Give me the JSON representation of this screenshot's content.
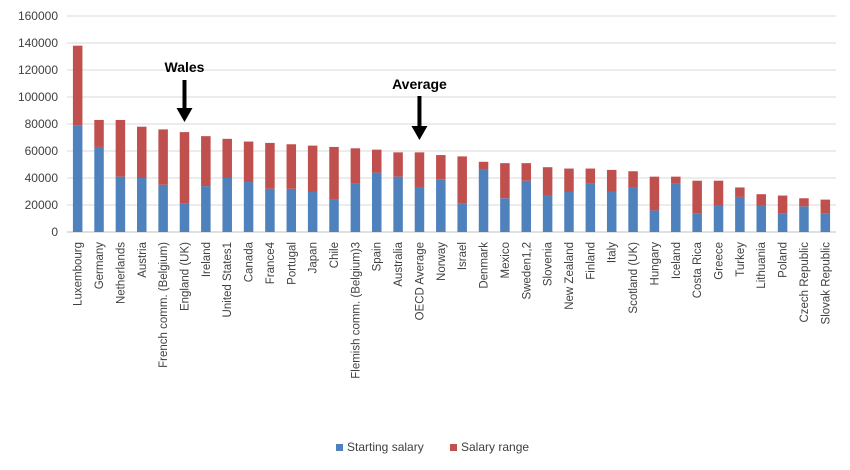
{
  "chart_data": {
    "type": "bar",
    "stacked": true,
    "categories": [
      "Luxembourg",
      "Germany",
      "Netherlands",
      "Austria",
      "French comm. (Belgium)",
      "England (UK)",
      "Ireland",
      "United States1",
      "Canada",
      "France4",
      "Portugal",
      "Japan",
      "Chile",
      "Flemish comm. (Belgium)3",
      "Spain",
      "Australia",
      "OECD Average",
      "Norway",
      "Israel",
      "Denmark",
      "Mexico",
      "Sweden1,2",
      "Slovenia",
      "New Zealand",
      "Finland",
      "Italy",
      "Scotland (UK)",
      "Hungary",
      "Iceland",
      "Costa Rica",
      "Greece",
      "Turkey",
      "Lithuania",
      "Poland",
      "Czech Republic",
      "Slovak Republic"
    ],
    "series": [
      {
        "name": "Starting salary",
        "color": "#4f81bd",
        "values": [
          79000,
          63000,
          41000,
          40000,
          35000,
          21000,
          34000,
          40000,
          37000,
          32000,
          32000,
          30000,
          24000,
          36000,
          44000,
          41000,
          33000,
          39000,
          21000,
          46000,
          25000,
          38000,
          27000,
          30000,
          36000,
          30000,
          33000,
          16000,
          36000,
          14000,
          20000,
          26000,
          20000,
          14000,
          19000,
          14000
        ]
      },
      {
        "name": "Salary range",
        "color": "#c0504d",
        "values": [
          59000,
          20000,
          42000,
          38000,
          41000,
          53000,
          37000,
          29000,
          30000,
          34000,
          33000,
          34000,
          39000,
          26000,
          17000,
          18000,
          26000,
          18000,
          35000,
          6000,
          26000,
          13000,
          21000,
          17000,
          11000,
          16000,
          12000,
          25000,
          5000,
          24000,
          18000,
          7000,
          8000,
          13000,
          6000,
          10000
        ]
      }
    ],
    "ylim": [
      0,
      160000
    ],
    "yticks": [
      "0",
      "20000",
      "40000",
      "60000",
      "80000",
      "100000",
      "120000",
      "140000",
      "160000"
    ],
    "grid": true,
    "legend_position": "bottom-center",
    "annotations": [
      {
        "text": "Wales",
        "category": "England (UK)"
      },
      {
        "text": "Average",
        "category": "OECD Average"
      }
    ]
  }
}
